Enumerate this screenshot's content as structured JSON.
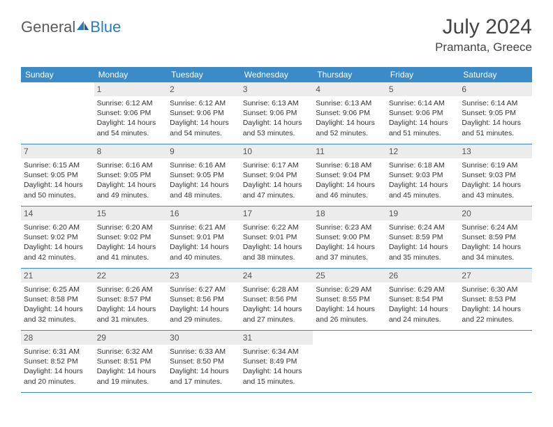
{
  "brand": {
    "part1": "General",
    "part2": "Blue"
  },
  "title": "July 2024",
  "location": "Pramanta, Greece",
  "weekdays": [
    "Sunday",
    "Monday",
    "Tuesday",
    "Wednesday",
    "Thursday",
    "Friday",
    "Saturday"
  ],
  "colors": {
    "header_bg": "#3b8bc8",
    "daynum_bg": "#ececec",
    "brand_gray": "#5a5a5a",
    "brand_blue": "#2b7bbf"
  },
  "weeks": [
    [
      {
        "empty": true
      },
      {
        "n": "1",
        "sunrise": "Sunrise: 6:12 AM",
        "sunset": "Sunset: 9:06 PM",
        "day1": "Daylight: 14 hours",
        "day2": "and 54 minutes."
      },
      {
        "n": "2",
        "sunrise": "Sunrise: 6:12 AM",
        "sunset": "Sunset: 9:06 PM",
        "day1": "Daylight: 14 hours",
        "day2": "and 54 minutes."
      },
      {
        "n": "3",
        "sunrise": "Sunrise: 6:13 AM",
        "sunset": "Sunset: 9:06 PM",
        "day1": "Daylight: 14 hours",
        "day2": "and 53 minutes."
      },
      {
        "n": "4",
        "sunrise": "Sunrise: 6:13 AM",
        "sunset": "Sunset: 9:06 PM",
        "day1": "Daylight: 14 hours",
        "day2": "and 52 minutes."
      },
      {
        "n": "5",
        "sunrise": "Sunrise: 6:14 AM",
        "sunset": "Sunset: 9:06 PM",
        "day1": "Daylight: 14 hours",
        "day2": "and 51 minutes."
      },
      {
        "n": "6",
        "sunrise": "Sunrise: 6:14 AM",
        "sunset": "Sunset: 9:05 PM",
        "day1": "Daylight: 14 hours",
        "day2": "and 51 minutes."
      }
    ],
    [
      {
        "n": "7",
        "sunrise": "Sunrise: 6:15 AM",
        "sunset": "Sunset: 9:05 PM",
        "day1": "Daylight: 14 hours",
        "day2": "and 50 minutes."
      },
      {
        "n": "8",
        "sunrise": "Sunrise: 6:16 AM",
        "sunset": "Sunset: 9:05 PM",
        "day1": "Daylight: 14 hours",
        "day2": "and 49 minutes."
      },
      {
        "n": "9",
        "sunrise": "Sunrise: 6:16 AM",
        "sunset": "Sunset: 9:05 PM",
        "day1": "Daylight: 14 hours",
        "day2": "and 48 minutes."
      },
      {
        "n": "10",
        "sunrise": "Sunrise: 6:17 AM",
        "sunset": "Sunset: 9:04 PM",
        "day1": "Daylight: 14 hours",
        "day2": "and 47 minutes."
      },
      {
        "n": "11",
        "sunrise": "Sunrise: 6:18 AM",
        "sunset": "Sunset: 9:04 PM",
        "day1": "Daylight: 14 hours",
        "day2": "and 46 minutes."
      },
      {
        "n": "12",
        "sunrise": "Sunrise: 6:18 AM",
        "sunset": "Sunset: 9:03 PM",
        "day1": "Daylight: 14 hours",
        "day2": "and 45 minutes."
      },
      {
        "n": "13",
        "sunrise": "Sunrise: 6:19 AM",
        "sunset": "Sunset: 9:03 PM",
        "day1": "Daylight: 14 hours",
        "day2": "and 43 minutes."
      }
    ],
    [
      {
        "n": "14",
        "sunrise": "Sunrise: 6:20 AM",
        "sunset": "Sunset: 9:02 PM",
        "day1": "Daylight: 14 hours",
        "day2": "and 42 minutes."
      },
      {
        "n": "15",
        "sunrise": "Sunrise: 6:20 AM",
        "sunset": "Sunset: 9:02 PM",
        "day1": "Daylight: 14 hours",
        "day2": "and 41 minutes."
      },
      {
        "n": "16",
        "sunrise": "Sunrise: 6:21 AM",
        "sunset": "Sunset: 9:01 PM",
        "day1": "Daylight: 14 hours",
        "day2": "and 40 minutes."
      },
      {
        "n": "17",
        "sunrise": "Sunrise: 6:22 AM",
        "sunset": "Sunset: 9:01 PM",
        "day1": "Daylight: 14 hours",
        "day2": "and 38 minutes."
      },
      {
        "n": "18",
        "sunrise": "Sunrise: 6:23 AM",
        "sunset": "Sunset: 9:00 PM",
        "day1": "Daylight: 14 hours",
        "day2": "and 37 minutes."
      },
      {
        "n": "19",
        "sunrise": "Sunrise: 6:24 AM",
        "sunset": "Sunset: 8:59 PM",
        "day1": "Daylight: 14 hours",
        "day2": "and 35 minutes."
      },
      {
        "n": "20",
        "sunrise": "Sunrise: 6:24 AM",
        "sunset": "Sunset: 8:59 PM",
        "day1": "Daylight: 14 hours",
        "day2": "and 34 minutes."
      }
    ],
    [
      {
        "n": "21",
        "sunrise": "Sunrise: 6:25 AM",
        "sunset": "Sunset: 8:58 PM",
        "day1": "Daylight: 14 hours",
        "day2": "and 32 minutes."
      },
      {
        "n": "22",
        "sunrise": "Sunrise: 6:26 AM",
        "sunset": "Sunset: 8:57 PM",
        "day1": "Daylight: 14 hours",
        "day2": "and 31 minutes."
      },
      {
        "n": "23",
        "sunrise": "Sunrise: 6:27 AM",
        "sunset": "Sunset: 8:56 PM",
        "day1": "Daylight: 14 hours",
        "day2": "and 29 minutes."
      },
      {
        "n": "24",
        "sunrise": "Sunrise: 6:28 AM",
        "sunset": "Sunset: 8:56 PM",
        "day1": "Daylight: 14 hours",
        "day2": "and 27 minutes."
      },
      {
        "n": "25",
        "sunrise": "Sunrise: 6:29 AM",
        "sunset": "Sunset: 8:55 PM",
        "day1": "Daylight: 14 hours",
        "day2": "and 26 minutes."
      },
      {
        "n": "26",
        "sunrise": "Sunrise: 6:29 AM",
        "sunset": "Sunset: 8:54 PM",
        "day1": "Daylight: 14 hours",
        "day2": "and 24 minutes."
      },
      {
        "n": "27",
        "sunrise": "Sunrise: 6:30 AM",
        "sunset": "Sunset: 8:53 PM",
        "day1": "Daylight: 14 hours",
        "day2": "and 22 minutes."
      }
    ],
    [
      {
        "n": "28",
        "sunrise": "Sunrise: 6:31 AM",
        "sunset": "Sunset: 8:52 PM",
        "day1": "Daylight: 14 hours",
        "day2": "and 20 minutes."
      },
      {
        "n": "29",
        "sunrise": "Sunrise: 6:32 AM",
        "sunset": "Sunset: 8:51 PM",
        "day1": "Daylight: 14 hours",
        "day2": "and 19 minutes."
      },
      {
        "n": "30",
        "sunrise": "Sunrise: 6:33 AM",
        "sunset": "Sunset: 8:50 PM",
        "day1": "Daylight: 14 hours",
        "day2": "and 17 minutes."
      },
      {
        "n": "31",
        "sunrise": "Sunrise: 6:34 AM",
        "sunset": "Sunset: 8:49 PM",
        "day1": "Daylight: 14 hours",
        "day2": "and 15 minutes."
      },
      {
        "empty": true
      },
      {
        "empty": true
      },
      {
        "empty": true
      }
    ]
  ]
}
